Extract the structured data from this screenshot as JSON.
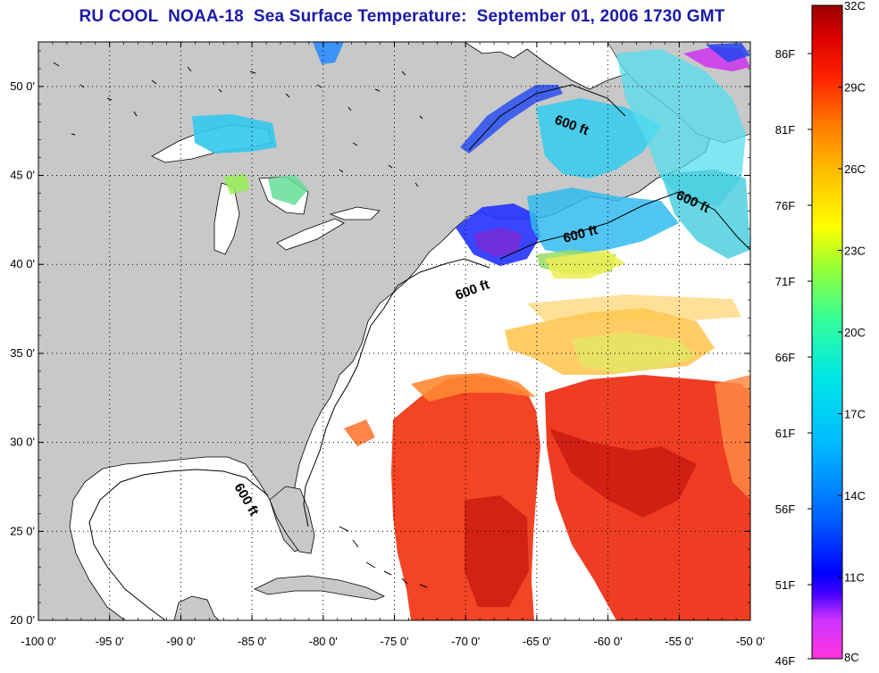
{
  "title": "RU COOL  NOAA-18  Sea Surface Temperature:  September 01, 2006 1730 GMT",
  "map": {
    "lon_range": [
      -100,
      -50
    ],
    "lat_range": [
      20,
      52.5
    ],
    "lon_ticks": [
      "-100 0'",
      "-95 0'",
      "-90 0'",
      "-85 0'",
      "-80 0'",
      "-75 0'",
      "-70 0'",
      "-65 0'",
      "-60 0'",
      "-55 0'",
      "-50 0'"
    ],
    "lat_ticks": [
      "20 0'",
      "25 0'",
      "30 0'",
      "35 0'",
      "40 0'",
      "45 0'",
      "50 0'"
    ],
    "grid": "dotted",
    "land_color": "#c8c8c8",
    "no_data_color": "#ffffff",
    "contour_labels": [
      "600 ft",
      "600 ft",
      "600 ft",
      "600 ft",
      "600 ft"
    ]
  },
  "colorbar": {
    "colors": [
      "#ff33cc",
      "#0000ff",
      "#00bfff",
      "#00e0d0",
      "#7fff00",
      "#ffff00",
      "#ffa500",
      "#ff4500",
      "#ff0000",
      "#a00000"
    ],
    "fahrenheit": [
      "86F",
      "81F",
      "76F",
      "71F",
      "66F",
      "61F",
      "56F",
      "51F",
      "46F"
    ],
    "celsius": [
      "32C",
      "29C",
      "26C",
      "23C",
      "20C",
      "17C",
      "14C",
      "11C",
      "8C"
    ]
  }
}
